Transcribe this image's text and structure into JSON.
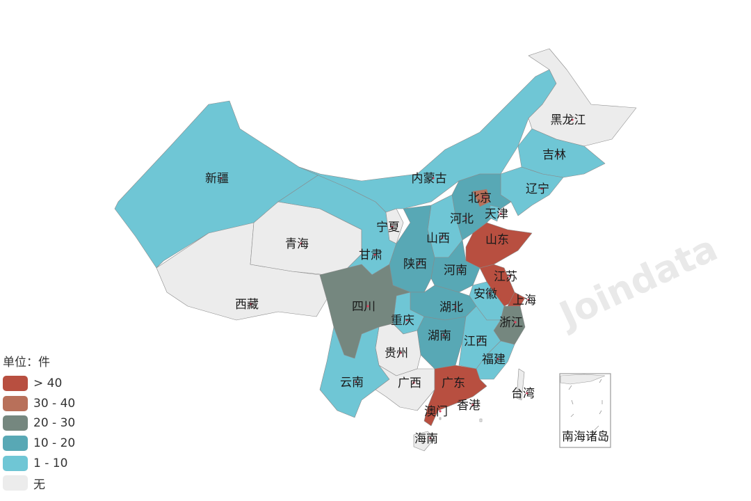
{
  "watermark": "Joindata",
  "legend": {
    "title": "单位：件",
    "items": [
      {
        "label": "> 40",
        "key": "gt40",
        "color": "#b84f40"
      },
      {
        "label": "30 - 40",
        "key": "30-40",
        "color": "#b8705a"
      },
      {
        "label": "20 - 30",
        "key": "20-30",
        "color": "#75877f"
      },
      {
        "label": "10 - 20",
        "key": "10-20",
        "color": "#58a8b5"
      },
      {
        "label": "1 - 10",
        "key": "1-10",
        "color": "#6fc6d5"
      },
      {
        "label": "无",
        "key": "none",
        "color": "#ececec"
      }
    ]
  },
  "regions": [
    {
      "name": "新疆",
      "category": "1-10"
    },
    {
      "name": "西藏",
      "category": "none"
    },
    {
      "name": "青海",
      "category": "none"
    },
    {
      "name": "甘肃",
      "category": "1-10"
    },
    {
      "name": "内蒙古",
      "category": "1-10"
    },
    {
      "name": "黑龙江",
      "category": "none"
    },
    {
      "name": "吉林",
      "category": "1-10"
    },
    {
      "name": "辽宁",
      "category": "1-10"
    },
    {
      "name": "河北",
      "category": "10-20"
    },
    {
      "name": "北京",
      "category": "30-40"
    },
    {
      "name": "天津",
      "category": "1-10"
    },
    {
      "name": "山西",
      "category": "1-10"
    },
    {
      "name": "陕西",
      "category": "10-20"
    },
    {
      "name": "宁夏",
      "category": "none"
    },
    {
      "name": "山东",
      "category": "gt40"
    },
    {
      "name": "河南",
      "category": "10-20"
    },
    {
      "name": "江苏",
      "category": "gt40"
    },
    {
      "name": "上海",
      "category": "gt40"
    },
    {
      "name": "安徽",
      "category": "1-10"
    },
    {
      "name": "湖北",
      "category": "10-20"
    },
    {
      "name": "重庆",
      "category": "1-10"
    },
    {
      "name": "四川",
      "category": "20-30"
    },
    {
      "name": "浙江",
      "category": "20-30"
    },
    {
      "name": "湖南",
      "category": "10-20"
    },
    {
      "name": "江西",
      "category": "1-10"
    },
    {
      "name": "福建",
      "category": "1-10"
    },
    {
      "name": "贵州",
      "category": "none"
    },
    {
      "name": "云南",
      "category": "1-10"
    },
    {
      "name": "广西",
      "category": "none"
    },
    {
      "name": "广东",
      "category": "gt40"
    },
    {
      "name": "海南",
      "category": "none"
    },
    {
      "name": "台湾",
      "category": "none"
    },
    {
      "name": "香港",
      "category": "none"
    },
    {
      "name": "澳门",
      "category": "none"
    },
    {
      "name": "南海诸岛",
      "category": "none"
    }
  ]
}
